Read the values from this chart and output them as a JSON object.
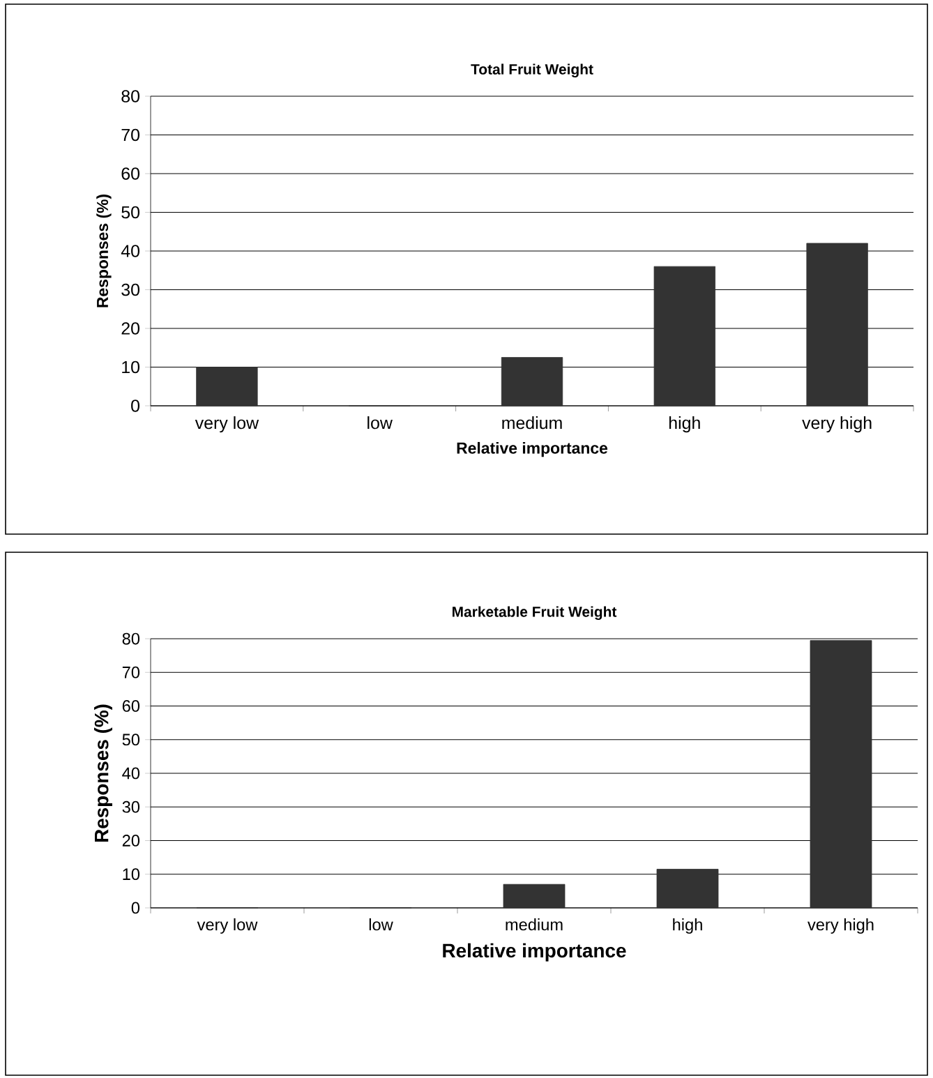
{
  "chart_data": [
    {
      "type": "bar",
      "title": "Total Fruit Weight",
      "xlabel": "Relative importance",
      "ylabel": "Responses (%)",
      "categories": [
        "very low",
        "low",
        "medium",
        "high",
        "very high"
      ],
      "values": [
        10,
        0,
        12.5,
        36,
        42
      ],
      "color": "#333333",
      "ylim": [
        0,
        80
      ],
      "yticks": [
        0,
        10,
        20,
        30,
        40,
        50,
        60,
        70,
        80
      ],
      "grid": "y"
    },
    {
      "type": "bar",
      "title": "Marketable Fruit Weight",
      "xlabel": "Relative importance",
      "ylabel": "Responses (%)",
      "categories": [
        "very low",
        "low",
        "medium",
        "high",
        "very high"
      ],
      "values": [
        0,
        0,
        7,
        11.5,
        79.5
      ],
      "color": "#333333",
      "ylim": [
        0,
        80
      ],
      "yticks": [
        0,
        10,
        20,
        30,
        40,
        50,
        60,
        70,
        80
      ],
      "grid": "y"
    }
  ]
}
